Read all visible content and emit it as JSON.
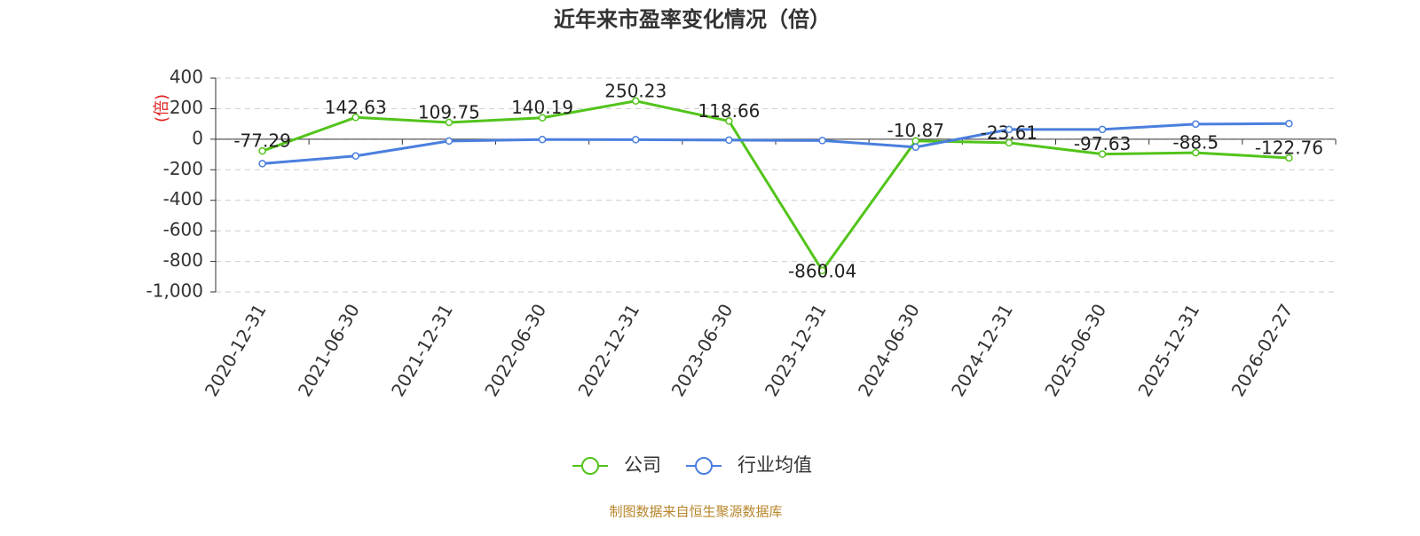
{
  "chart_data": {
    "type": "line",
    "title": "近年来市盈率变化情况（倍）",
    "y_label": "(倍)",
    "source": "制图数据来自恒生聚源数据库",
    "categories": [
      "2020-12-31",
      "2021-06-30",
      "2021-12-31",
      "2022-06-30",
      "2022-12-31",
      "2023-06-30",
      "2023-12-31",
      "2024-06-30",
      "2024-12-31",
      "2025-06-30",
      "2025-12-31",
      "2026-02-27"
    ],
    "series": [
      {
        "name": "公司",
        "color": "#52c41a",
        "values": [
          -77.29,
          142.63,
          109.75,
          140.19,
          250.23,
          118.66,
          -860.04,
          -10.87,
          -23.61,
          -97.63,
          -88.5,
          -122.76
        ],
        "show_labels": true
      },
      {
        "name": "行业均值",
        "color": "#4a7fde",
        "values": [
          -160,
          -110,
          -12,
          -2,
          -3,
          -6,
          -9,
          -52,
          64,
          64,
          99,
          102
        ],
        "show_labels": false
      }
    ],
    "ylim": [
      -1000,
      400
    ],
    "yticks": [
      400,
      200,
      0,
      -200,
      -400,
      -600,
      -800,
      {
        "value": -1000,
        "label": "-1,000"
      }
    ],
    "grid": true
  }
}
